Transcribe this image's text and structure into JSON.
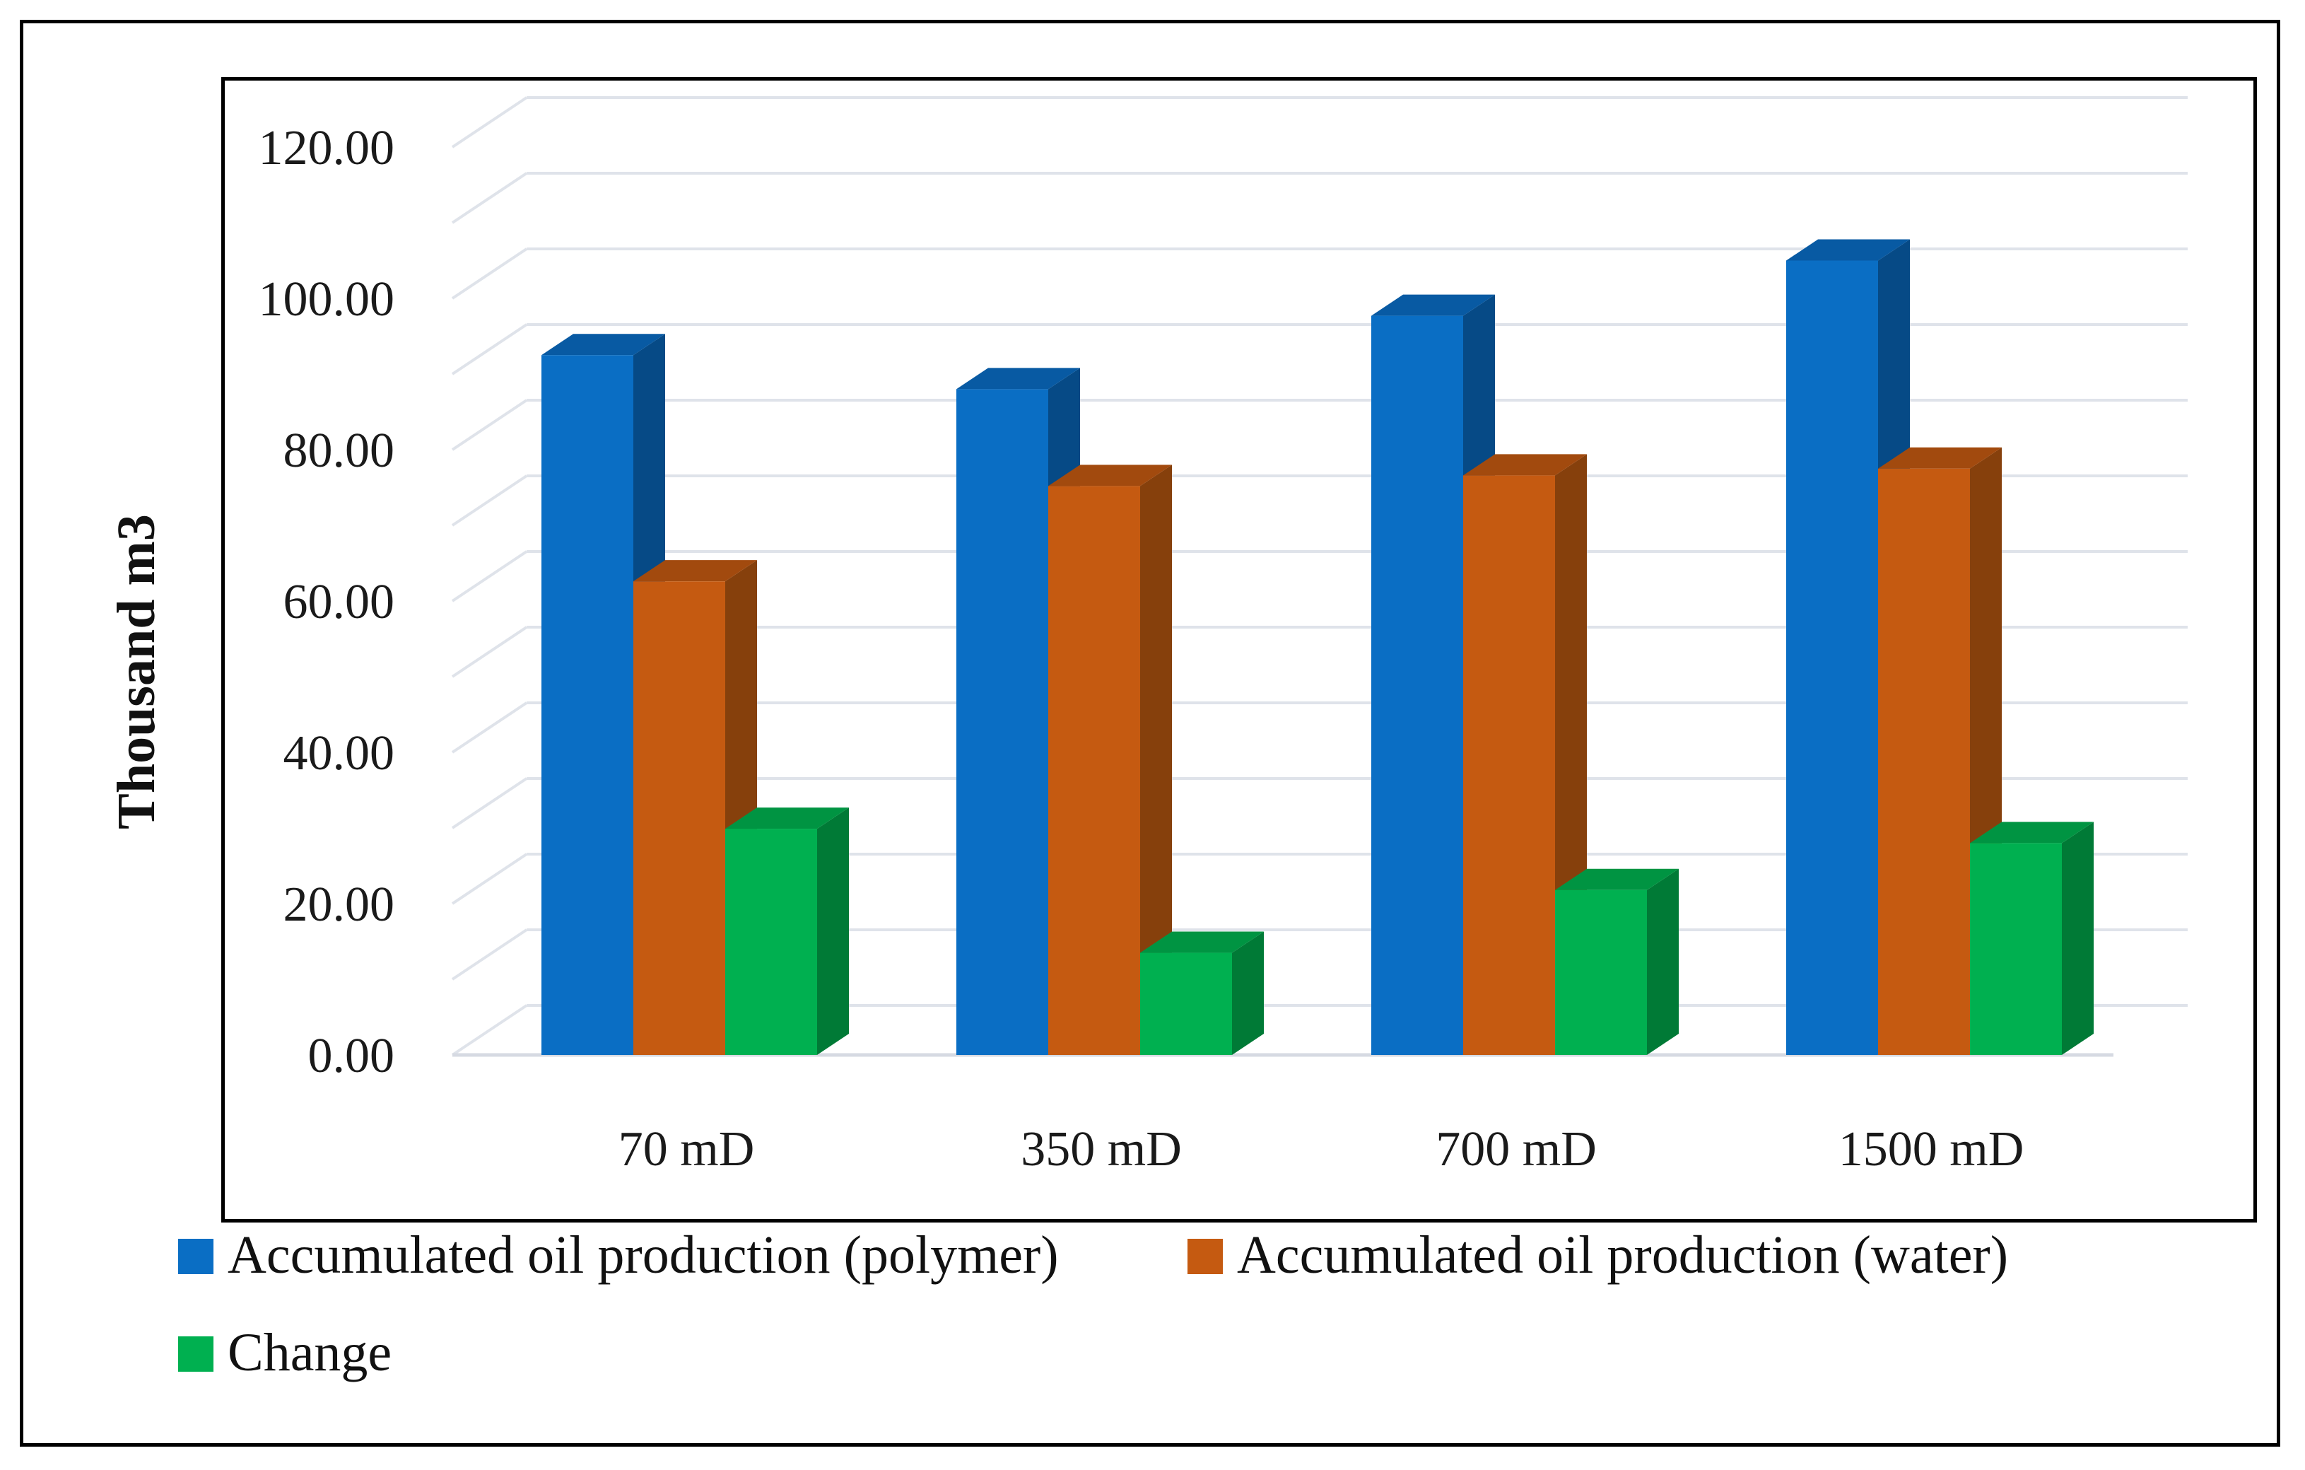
{
  "chart_data": {
    "type": "bar",
    "title": "",
    "xlabel": "",
    "ylabel": "Thousand m3",
    "ylim": [
      0,
      120
    ],
    "yticks": [
      "0.00",
      "20.00",
      "40.00",
      "60.00",
      "80.00",
      "100.00",
      "120.00"
    ],
    "categories": [
      "70 mD",
      "350 mD",
      "700 mD",
      "1500 mD"
    ],
    "series": [
      {
        "name": "Accumulated oil production (polymer)",
        "color": "#0a6ec4",
        "side": "#064a86",
        "top": "#085aa3",
        "values": [
          92.5,
          88.0,
          97.7,
          105.0
        ]
      },
      {
        "name": "Accumulated oil production (water)",
        "color": "#c55a11",
        "side": "#86400c",
        "top": "#a24a0e",
        "values": [
          62.6,
          75.2,
          76.6,
          77.5
        ]
      },
      {
        "name": "Change",
        "color": "#00b050",
        "side": "#007a36",
        "top": "#009442",
        "values": [
          29.9,
          13.5,
          21.8,
          28.0
        ]
      }
    ],
    "grid": true,
    "legend": "bottom"
  }
}
